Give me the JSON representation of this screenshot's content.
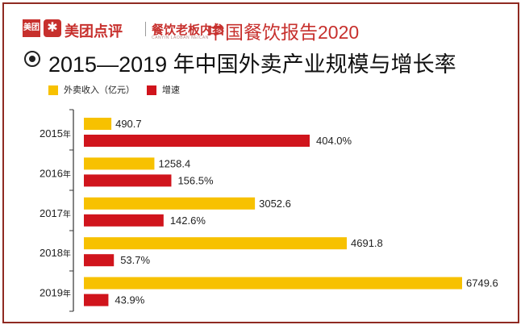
{
  "header": {
    "logo_text": "美团",
    "logo_icon": "meituan-figure-icon",
    "brand_name": "美团点评",
    "partner_name": "餐饮老板内参",
    "partner_tagline": "CANYIN LAOBAN NEICAN",
    "report_title": "中国餐饮报告2020"
  },
  "title": "2015—2019 年中国外卖产业规模与增长率",
  "colors": {
    "revenue": "#f7c100",
    "growth": "#d0141c",
    "brand": "#c7302d",
    "frame": "#8f2a22"
  },
  "chart_data": {
    "type": "bar",
    "orientation": "horizontal",
    "title": "2015—2019 年中国外卖产业规模与增长率",
    "year_suffix": "年",
    "categories": [
      "2015",
      "2016",
      "2017",
      "2018",
      "2019"
    ],
    "series": [
      {
        "name": "外卖收入（亿元）",
        "color": "#f7c100",
        "values": [
          490.7,
          1258.4,
          3052.6,
          4691.8,
          6749.6
        ],
        "labels": [
          "490.7",
          "1258.4",
          "3052.6",
          "4691.8",
          "6749.6"
        ]
      },
      {
        "name": "增速",
        "color": "#d0141c",
        "values": [
          404.0,
          156.5,
          142.6,
          53.7,
          43.9
        ],
        "labels": [
          "404.0%",
          "156.5%",
          "142.6%",
          "53.7%",
          "43.9%"
        ]
      }
    ],
    "legend_position": "top-left",
    "grid": false
  }
}
